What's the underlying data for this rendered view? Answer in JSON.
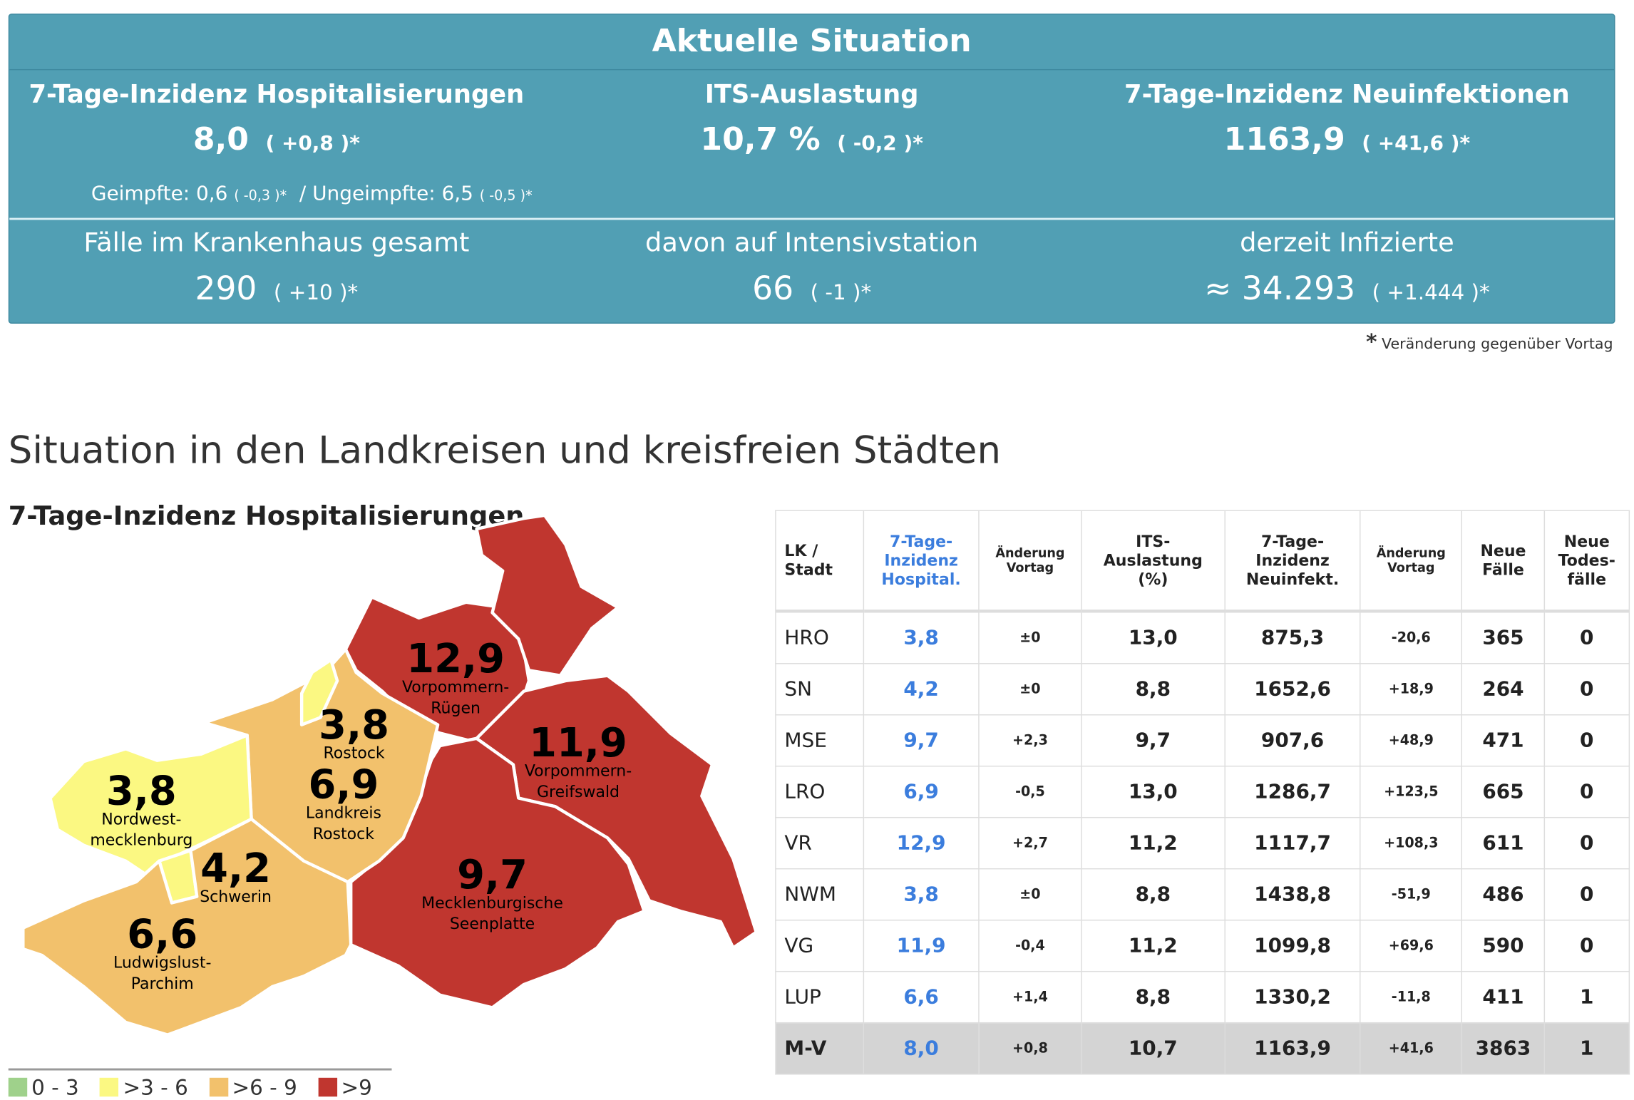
{
  "summary": {
    "title": "Aktuelle Situation",
    "hosp": {
      "label": "7-Tage-Inzidenz Hospitalisierungen",
      "value": "8,0",
      "change": "( +0,8 )*"
    },
    "its": {
      "label": "ITS-Auslastung",
      "value": "10,7 %",
      "change": "( -0,2 )*"
    },
    "neu": {
      "label": "7-Tage-Inzidenz Neuinfektionen",
      "value": "1163,9",
      "change": "( +41,6 )*"
    },
    "vacc": {
      "geimpft_label": "Geimpfte: 0,6",
      "geimpft_change": "( -0,3 )*",
      "sep": "/",
      "ungeimpft_label": "Ungeimpfte: 6,5",
      "ungeimpft_change": "( -0,5 )*"
    },
    "kh": {
      "label": "Fälle im Krankenhaus gesamt",
      "value": "290",
      "change": "( +10 )*"
    },
    "intensiv": {
      "label": "davon auf Intensivstation",
      "value": "66",
      "change": "( -1 )*"
    },
    "infiziert": {
      "label": "derzeit Infizierte",
      "value": "≈ 34.293",
      "change": "( +1.444 )*"
    }
  },
  "footnote": {
    "star": "*",
    "text": "Veränderung gegenüber Vortag"
  },
  "section_title": "Situation in den Landkreisen und kreisfreien Städten",
  "map": {
    "title": "7-Tage-Inzidenz Hospitalisierungen",
    "regions": [
      {
        "value": "12,9",
        "name1": "Vorpommern-",
        "name2": "Rügen",
        "color": "#c0362f"
      },
      {
        "value": "3,8",
        "name1": "Rostock",
        "name2": "",
        "color": "#fbf882"
      },
      {
        "value": "11,9",
        "name1": "Vorpommern-",
        "name2": "Greifswald",
        "color": "#c0362f"
      },
      {
        "value": "3,8",
        "name1": "Nordwest-",
        "name2": "mecklenburg",
        "color": "#fbf882"
      },
      {
        "value": "6,9",
        "name1": "Landkreis",
        "name2": "Rostock",
        "color": "#f2c16c"
      },
      {
        "value": "4,2",
        "name1": "Schwerin",
        "name2": "",
        "color": "#fbf882"
      },
      {
        "value": "9,7",
        "name1": "Mecklenburgische",
        "name2": "Seenplatte",
        "color": "#c0362f"
      },
      {
        "value": "6,6",
        "name1": "Ludwigslust-",
        "name2": "Parchim",
        "color": "#f2c16c"
      }
    ],
    "legend": [
      {
        "label": "0 - 3",
        "color": "#9fd18b"
      },
      {
        "label": ">3 - 6",
        "color": "#fbf882"
      },
      {
        "label": ">6 - 9",
        "color": "#f2c16c"
      },
      {
        "label": ">9",
        "color": "#c0362f"
      }
    ]
  },
  "table": {
    "headers": {
      "lk": [
        "LK /",
        "Stadt"
      ],
      "hosp": [
        "7-Tage-",
        "Inzidenz",
        "Hospital."
      ],
      "aend1": [
        "Änderung",
        "Vortag"
      ],
      "its": [
        "ITS-",
        "Auslastung",
        "(%)"
      ],
      "neu": [
        "7-Tage-",
        "Inzidenz",
        "Neuinfekt."
      ],
      "aend2": [
        "Änderung",
        "Vortag"
      ],
      "faelle": [
        "Neue",
        "Fälle"
      ],
      "tod": [
        "Neue",
        "Todes-",
        "fälle"
      ]
    },
    "rows": [
      [
        "HRO",
        "3,8",
        "±0",
        "13,0",
        "875,3",
        "-20,6",
        "365",
        "0"
      ],
      [
        "SN",
        "4,2",
        "±0",
        "8,8",
        "1652,6",
        "+18,9",
        "264",
        "0"
      ],
      [
        "MSE",
        "9,7",
        "+2,3",
        "9,7",
        "907,6",
        "+48,9",
        "471",
        "0"
      ],
      [
        "LRO",
        "6,9",
        "-0,5",
        "13,0",
        "1286,7",
        "+123,5",
        "665",
        "0"
      ],
      [
        "VR",
        "12,9",
        "+2,7",
        "11,2",
        "1117,7",
        "+108,3",
        "611",
        "0"
      ],
      [
        "NWM",
        "3,8",
        "±0",
        "8,8",
        "1438,8",
        "-51,9",
        "486",
        "0"
      ],
      [
        "VG",
        "11,9",
        "-0,4",
        "11,2",
        "1099,8",
        "+69,6",
        "590",
        "0"
      ],
      [
        "LUP",
        "6,6",
        "+1,4",
        "8,8",
        "1330,2",
        "-11,8",
        "411",
        "1"
      ]
    ],
    "total": [
      "M-V",
      "8,0",
      "+0,8",
      "10,7",
      "1163,9",
      "+41,6",
      "3863",
      "1"
    ]
  }
}
